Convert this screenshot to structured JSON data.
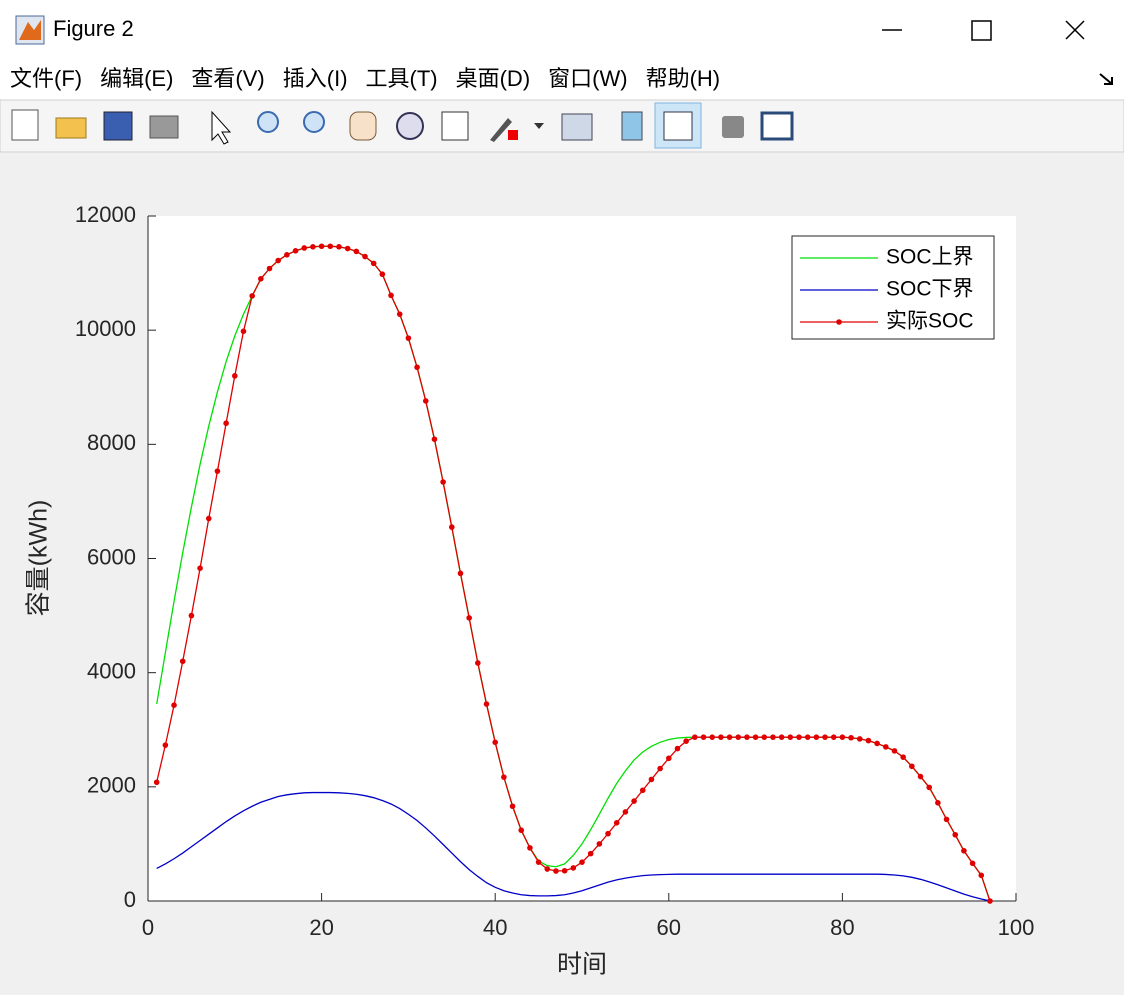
{
  "window": {
    "title": "Figure 2",
    "menu": [
      "文件(F)",
      "编辑(E)",
      "查看(V)",
      "插入(I)",
      "工具(T)",
      "桌面(D)",
      "窗口(W)",
      "帮助(H)"
    ]
  },
  "chart_data": {
    "type": "line",
    "x_label": "时间",
    "y_label": "容量(kWh)",
    "xlim": [
      0,
      100
    ],
    "xticks": [
      0,
      20,
      40,
      60,
      80,
      100
    ],
    "ylim": [
      0,
      12000
    ],
    "yticks": [
      0,
      2000,
      4000,
      6000,
      8000,
      10000,
      12000
    ],
    "grid": false,
    "legend": "upper right",
    "x": [
      1,
      2,
      3,
      4,
      5,
      6,
      7,
      8,
      9,
      10,
      11,
      12,
      13,
      14,
      15,
      16,
      17,
      18,
      19,
      20,
      21,
      22,
      23,
      24,
      25,
      26,
      27,
      28,
      29,
      30,
      31,
      32,
      33,
      34,
      35,
      36,
      37,
      38,
      39,
      40,
      41,
      42,
      43,
      44,
      45,
      46,
      47,
      48,
      49,
      50,
      51,
      52,
      53,
      54,
      55,
      56,
      57,
      58,
      59,
      60,
      61,
      62,
      63,
      64,
      65,
      66,
      67,
      68,
      69,
      70,
      71,
      72,
      73,
      74,
      75,
      76,
      77,
      78,
      79,
      80,
      81,
      82,
      83,
      84,
      85,
      86,
      87,
      88,
      89,
      90,
      91,
      92,
      93,
      94,
      95,
      96,
      97
    ],
    "series": [
      {
        "name": "SOC上界",
        "color": "#00e000",
        "marker": false,
        "values": [
          3450,
          4350,
          5250,
          6100,
          6900,
          7650,
          8320,
          8920,
          9450,
          9900,
          10280,
          10600,
          10900,
          11080,
          11220,
          11320,
          11390,
          11440,
          11460,
          11470,
          11470,
          11460,
          11430,
          11380,
          11290,
          11170,
          10980,
          10610,
          10280,
          9860,
          9350,
          8760,
          8090,
          7340,
          6550,
          5740,
          4960,
          4170,
          3450,
          2780,
          2170,
          1660,
          1240,
          930,
          700,
          620,
          600,
          650,
          800,
          1000,
          1250,
          1520,
          1800,
          2060,
          2280,
          2470,
          2610,
          2710,
          2780,
          2830,
          2855,
          2865,
          2870,
          2870,
          2870,
          2870,
          2870,
          2870,
          2870,
          2870,
          2870,
          2870,
          2870,
          2870,
          2870,
          2870,
          2870,
          2870,
          2870,
          2870,
          2860,
          2840,
          2810,
          2760,
          2700,
          2630,
          2520,
          2360,
          2180,
          1990,
          1720,
          1430,
          1160,
          880,
          660,
          450,
          0
        ]
      },
      {
        "name": "SOC下界",
        "color": "#0000c8",
        "marker": false,
        "values": [
          570,
          650,
          740,
          840,
          950,
          1060,
          1170,
          1280,
          1390,
          1490,
          1580,
          1660,
          1730,
          1780,
          1830,
          1860,
          1880,
          1895,
          1900,
          1900,
          1900,
          1895,
          1885,
          1870,
          1845,
          1810,
          1760,
          1700,
          1620,
          1520,
          1410,
          1280,
          1140,
          990,
          840,
          690,
          550,
          430,
          320,
          240,
          180,
          140,
          110,
          95,
          90,
          90,
          95,
          110,
          140,
          180,
          230,
          280,
          330,
          370,
          400,
          425,
          445,
          455,
          462,
          467,
          470,
          470,
          470,
          470,
          470,
          470,
          470,
          470,
          470,
          470,
          470,
          470,
          470,
          470,
          470,
          470,
          470,
          470,
          470,
          470,
          470,
          470,
          470,
          470,
          465,
          455,
          440,
          415,
          380,
          335,
          285,
          230,
          175,
          120,
          75,
          35,
          0
        ]
      },
      {
        "name": "实际SOC",
        "color": "#e00000",
        "marker": true,
        "values": [
          2080,
          2730,
          3430,
          4200,
          5000,
          5830,
          6700,
          7530,
          8370,
          9200,
          9980,
          10600,
          10900,
          11080,
          11220,
          11320,
          11390,
          11440,
          11460,
          11470,
          11470,
          11460,
          11430,
          11380,
          11290,
          11170,
          10980,
          10610,
          10280,
          9860,
          9350,
          8760,
          8090,
          7340,
          6550,
          5740,
          4960,
          4170,
          3450,
          2780,
          2170,
          1660,
          1240,
          930,
          680,
          560,
          525,
          530,
          580,
          680,
          830,
          1000,
          1180,
          1370,
          1560,
          1750,
          1940,
          2130,
          2320,
          2500,
          2670,
          2800,
          2870,
          2870,
          2870,
          2870,
          2870,
          2870,
          2870,
          2870,
          2870,
          2870,
          2870,
          2870,
          2870,
          2870,
          2870,
          2870,
          2870,
          2870,
          2860,
          2840,
          2810,
          2760,
          2700,
          2630,
          2520,
          2360,
          2180,
          1990,
          1720,
          1430,
          1160,
          880,
          660,
          450,
          0
        ]
      }
    ]
  }
}
